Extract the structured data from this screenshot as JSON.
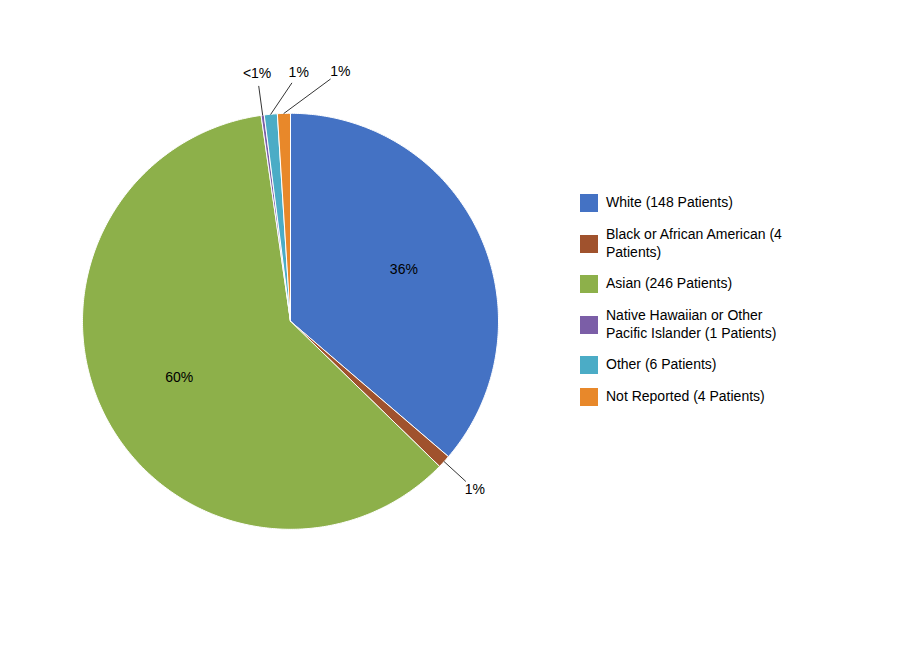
{
  "chart_data": {
    "type": "pie",
    "categories": [
      "White (148 Patients)",
      "Black or African American (4\nPatients)",
      "Asian (246 Patients)",
      "Native Hawaiian or Other\nPacific Islander (1 Patients)",
      "Other (6 Patients)",
      "Not Reported (4 Patients)"
    ],
    "values": [
      36,
      1,
      60,
      0.24,
      1,
      1
    ],
    "value_labels": [
      "36%",
      "1%",
      "60%",
      "<1%",
      "1%",
      "1%"
    ],
    "colors": [
      "#4472C4",
      "#A0522D",
      "#8DB04A",
      "#7B5EA7",
      "#4BACC6",
      "#E8882A"
    ],
    "data_labels": true,
    "legend": "right"
  }
}
